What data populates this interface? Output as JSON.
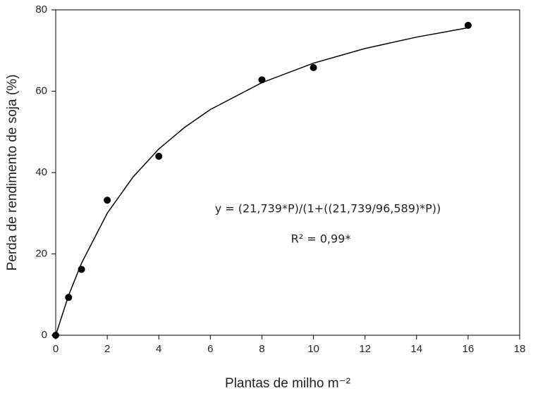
{
  "chart_data": {
    "type": "scatter",
    "xlabel": "Plantas de milho m⁻²",
    "ylabel": "Perda de rendimento de soja (%)",
    "xlim": [
      0,
      18
    ],
    "ylim": [
      0,
      80
    ],
    "xticks": [
      0,
      2,
      4,
      6,
      8,
      10,
      12,
      14,
      16,
      18
    ],
    "yticks": [
      0,
      20,
      40,
      60,
      80
    ],
    "annotations": [
      "y = (21,739*P)/(1+((21,739/96,589)*P))",
      "R² = 0,99*"
    ],
    "series": [
      {
        "mode": "markers",
        "color": "#000000",
        "x": [
          0,
          0.5,
          1,
          2,
          4,
          8,
          10,
          16
        ],
        "values": [
          0,
          9.3,
          16.2,
          33.2,
          44,
          62.8,
          65.8,
          76.2
        ]
      },
      {
        "mode": "line",
        "color": "#000000",
        "x": [
          0,
          0.5,
          1,
          2,
          3,
          4,
          5,
          6,
          8,
          10,
          12,
          14,
          16
        ],
        "values": [
          0,
          9.8,
          17.7,
          30,
          38.9,
          45.8,
          51.1,
          55.5,
          62.1,
          66.9,
          70.5,
          73.3,
          75.6
        ]
      }
    ]
  }
}
